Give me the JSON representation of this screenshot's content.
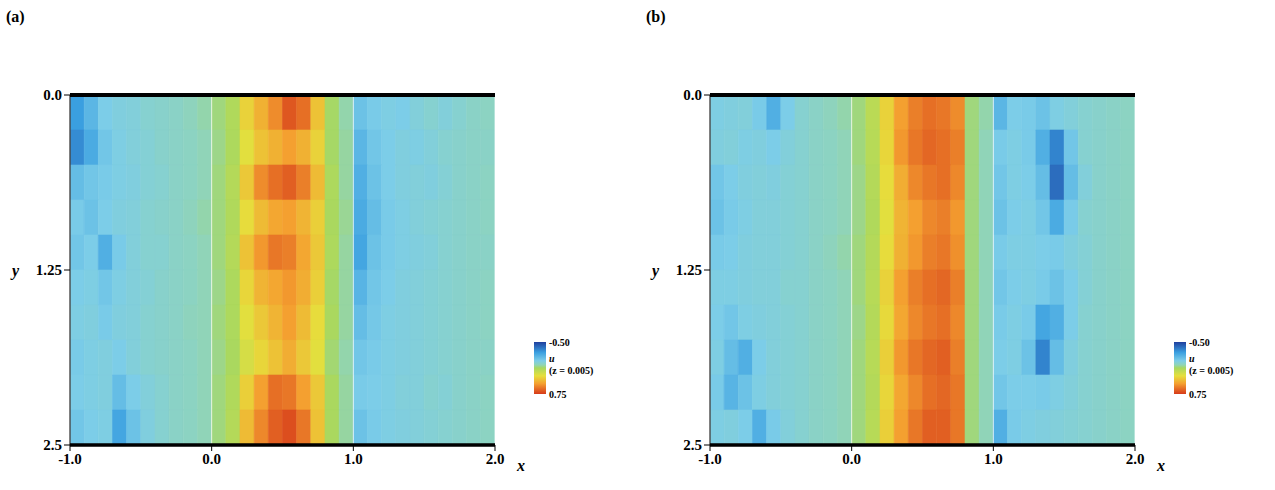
{
  "chart_data": [
    {
      "type": "heatmap",
      "title": "(a)",
      "x_label": "x",
      "y_label": "y",
      "xlim": [
        -1.0,
        2.0
      ],
      "xticks": [
        {
          "value": -1.0,
          "label": "-1.0"
        },
        {
          "value": 0,
          "label": "0.0"
        },
        {
          "value": 1.0,
          "label": "1.0"
        },
        {
          "value": 2.0,
          "label": "2.0"
        }
      ],
      "ylim": [
        0,
        2.5
      ],
      "yticks": [
        {
          "value": 0,
          "label": "0.0"
        },
        1.25,
        2.5
      ],
      "grid": true,
      "x_edges": [
        -1.0,
        -0.9,
        -0.8,
        -0.7,
        -0.6,
        -0.5,
        -0.4,
        -0.3,
        -0.2,
        -0.1,
        0.0,
        0.1,
        0.2,
        0.3,
        0.4,
        0.5,
        0.6,
        0.7,
        0.8,
        0.9,
        1.0,
        1.1,
        1.2,
        1.3,
        1.4,
        1.5,
        1.6,
        1.7,
        1.8,
        1.9,
        2.0
      ],
      "y_edges": [
        0.0,
        0.25,
        0.5,
        0.75,
        1.0,
        1.25,
        1.5,
        1.75,
        2.0,
        2.25,
        2.5
      ],
      "cells": [
        [
          -0.25,
          -0.15,
          -0.05,
          -0.03,
          -0.02,
          0.0,
          0.01,
          0.02,
          0.04,
          0.06,
          0.1,
          0.15,
          0.35,
          0.45,
          0.55,
          0.68,
          0.62,
          0.4,
          0.12,
          0.06,
          -0.1,
          -0.06,
          -0.04,
          -0.05,
          -0.02,
          0.0,
          -0.02,
          0.0,
          0.02,
          0.03
        ],
        [
          -0.3,
          -0.2,
          -0.08,
          -0.04,
          -0.02,
          -0.01,
          0.01,
          0.02,
          0.03,
          0.05,
          0.09,
          0.14,
          0.3,
          0.4,
          0.45,
          0.5,
          0.45,
          0.35,
          0.12,
          0.07,
          -0.15,
          -0.08,
          -0.05,
          -0.03,
          -0.04,
          -0.02,
          0.0,
          0.01,
          0.02,
          0.02
        ],
        [
          -0.12,
          -0.08,
          -0.06,
          -0.04,
          -0.03,
          -0.01,
          0.0,
          0.02,
          0.03,
          0.05,
          0.1,
          0.16,
          0.38,
          0.55,
          0.62,
          0.66,
          0.58,
          0.42,
          0.14,
          0.07,
          -0.18,
          -0.1,
          -0.05,
          -0.03,
          -0.02,
          -0.03,
          -0.01,
          0.01,
          0.02,
          0.03
        ],
        [
          -0.06,
          -0.1,
          -0.05,
          -0.03,
          -0.02,
          0.0,
          0.01,
          0.02,
          0.04,
          0.06,
          0.1,
          0.15,
          0.32,
          0.42,
          0.48,
          0.5,
          0.44,
          0.36,
          0.13,
          0.08,
          -0.2,
          -0.12,
          -0.06,
          -0.04,
          -0.02,
          -0.01,
          0.0,
          0.01,
          0.02,
          0.03
        ],
        [
          -0.08,
          -0.05,
          -0.18,
          -0.06,
          -0.02,
          0.0,
          0.0,
          0.02,
          0.03,
          0.05,
          0.1,
          0.16,
          0.4,
          0.52,
          0.6,
          0.58,
          0.48,
          0.38,
          0.14,
          0.07,
          -0.22,
          -0.1,
          -0.06,
          -0.04,
          -0.03,
          -0.02,
          0.0,
          0.01,
          0.02,
          0.02
        ],
        [
          -0.05,
          -0.04,
          -0.08,
          -0.04,
          -0.02,
          -0.01,
          0.01,
          0.02,
          0.03,
          0.05,
          0.09,
          0.14,
          0.34,
          0.44,
          0.48,
          0.52,
          0.46,
          0.36,
          0.12,
          0.07,
          -0.16,
          -0.08,
          -0.05,
          -0.03,
          -0.02,
          -0.01,
          0.0,
          0.01,
          0.02,
          0.03
        ],
        [
          -0.04,
          -0.03,
          -0.06,
          -0.03,
          -0.02,
          0.0,
          0.01,
          0.02,
          0.04,
          0.05,
          0.1,
          0.14,
          0.3,
          0.38,
          0.44,
          0.5,
          0.42,
          0.32,
          0.13,
          0.07,
          -0.12,
          -0.07,
          -0.04,
          -0.03,
          -0.02,
          -0.01,
          0.0,
          0.01,
          0.02,
          0.03
        ],
        [
          -0.06,
          -0.04,
          -0.03,
          -0.05,
          -0.02,
          0.0,
          0.01,
          0.02,
          0.03,
          0.05,
          0.09,
          0.13,
          0.26,
          0.34,
          0.4,
          0.46,
          0.38,
          0.3,
          0.11,
          0.06,
          -0.08,
          -0.06,
          -0.04,
          -0.03,
          -0.02,
          -0.01,
          0.0,
          0.01,
          0.02,
          0.02
        ],
        [
          -0.05,
          -0.04,
          -0.03,
          -0.12,
          -0.05,
          -0.02,
          0.0,
          0.02,
          0.03,
          0.05,
          0.1,
          0.15,
          0.36,
          0.5,
          0.62,
          0.6,
          0.5,
          0.38,
          0.13,
          0.07,
          -0.06,
          -0.05,
          -0.04,
          -0.02,
          -0.02,
          0.0,
          -0.01,
          0.01,
          0.02,
          0.03
        ],
        [
          -0.08,
          -0.05,
          -0.04,
          -0.22,
          -0.1,
          -0.03,
          0.0,
          0.02,
          0.03,
          0.05,
          0.1,
          0.16,
          0.42,
          0.56,
          0.66,
          0.7,
          0.6,
          0.4,
          0.13,
          0.07,
          -0.1,
          -0.06,
          -0.04,
          -0.03,
          -0.02,
          -0.01,
          0.0,
          0.01,
          0.02,
          0.03
        ]
      ],
      "colorbar": {
        "label": "u",
        "sublabel": "(z = 0.005)",
        "range": [
          -0.5,
          0.75
        ],
        "ticks": [
          {
            "value": -0.5,
            "label": "-0.50"
          },
          {
            "value": 0.75,
            "label": "0.75"
          }
        ]
      }
    },
    {
      "type": "heatmap",
      "title": "(b)",
      "x_label": "x",
      "y_label": "y",
      "xlim": [
        -1.0,
        2.0
      ],
      "xticks": [
        {
          "value": -1.0,
          "label": "-1.0"
        },
        {
          "value": 0,
          "label": "0.0"
        },
        {
          "value": 1.0,
          "label": "1.0"
        },
        {
          "value": 2.0,
          "label": "2.0"
        }
      ],
      "ylim": [
        0,
        2.5
      ],
      "yticks": [
        {
          "value": 0,
          "label": "0.0"
        },
        1.25,
        2.5
      ],
      "grid": true,
      "x_edges": [
        -1.0,
        -0.9,
        -0.8,
        -0.7,
        -0.6,
        -0.5,
        -0.4,
        -0.3,
        -0.2,
        -0.1,
        0.0,
        0.1,
        0.2,
        0.3,
        0.4,
        0.5,
        0.6,
        0.7,
        0.8,
        0.9,
        1.0,
        1.1,
        1.2,
        1.3,
        1.4,
        1.5,
        1.6,
        1.7,
        1.8,
        1.9,
        2.0
      ],
      "y_edges": [
        0.0,
        0.25,
        0.5,
        0.75,
        1.0,
        1.25,
        1.5,
        1.75,
        2.0,
        2.25,
        2.5
      ],
      "cells": [
        [
          -0.04,
          -0.03,
          -0.02,
          -0.06,
          -0.18,
          -0.05,
          0.0,
          0.02,
          0.04,
          0.06,
          0.1,
          0.18,
          0.35,
          0.5,
          0.58,
          0.62,
          0.6,
          0.55,
          0.1,
          0.06,
          -0.15,
          -0.05,
          -0.06,
          -0.1,
          -0.04,
          -0.02,
          0.0,
          0.01,
          0.02,
          0.03
        ],
        [
          -0.03,
          -0.02,
          -0.04,
          -0.03,
          -0.05,
          -0.02,
          0.0,
          0.02,
          0.03,
          0.05,
          0.1,
          0.17,
          0.34,
          0.52,
          0.6,
          0.64,
          0.62,
          0.58,
          0.1,
          0.05,
          -0.06,
          -0.04,
          -0.06,
          -0.18,
          -0.32,
          -0.08,
          0.0,
          0.01,
          0.02,
          0.03
        ],
        [
          -0.08,
          -0.05,
          -0.03,
          -0.02,
          -0.03,
          -0.01,
          0.0,
          0.02,
          0.03,
          0.05,
          0.09,
          0.16,
          0.32,
          0.46,
          0.56,
          0.6,
          0.62,
          0.56,
          0.1,
          0.05,
          -0.08,
          -0.04,
          -0.05,
          -0.12,
          -0.38,
          -0.12,
          -0.02,
          0.01,
          0.02,
          0.03
        ],
        [
          -0.1,
          -0.06,
          -0.04,
          -0.02,
          -0.02,
          -0.01,
          0.0,
          0.02,
          0.03,
          0.05,
          0.09,
          0.15,
          0.3,
          0.44,
          0.5,
          0.56,
          0.58,
          0.52,
          0.1,
          0.05,
          -0.1,
          -0.05,
          -0.04,
          -0.08,
          -0.2,
          -0.06,
          0.0,
          0.01,
          0.02,
          0.03
        ],
        [
          -0.06,
          -0.05,
          -0.03,
          -0.02,
          -0.02,
          -0.01,
          0.0,
          0.02,
          0.04,
          0.06,
          0.1,
          0.16,
          0.32,
          0.45,
          0.52,
          0.58,
          0.6,
          0.54,
          0.1,
          0.05,
          -0.06,
          -0.04,
          -0.04,
          -0.05,
          -0.06,
          -0.03,
          -0.01,
          0.01,
          0.02,
          0.03
        ],
        [
          -0.04,
          -0.04,
          -0.03,
          -0.02,
          -0.02,
          0.0,
          0.0,
          0.02,
          0.03,
          0.05,
          0.1,
          0.17,
          0.35,
          0.5,
          0.58,
          0.62,
          0.64,
          0.58,
          0.1,
          0.05,
          -0.08,
          -0.05,
          -0.04,
          -0.06,
          -0.1,
          -0.05,
          -0.01,
          0.01,
          0.02,
          0.03
        ],
        [
          -0.05,
          -0.08,
          -0.04,
          -0.03,
          -0.02,
          -0.01,
          0.0,
          0.02,
          0.03,
          0.05,
          0.09,
          0.16,
          0.33,
          0.48,
          0.56,
          0.6,
          0.62,
          0.56,
          0.1,
          0.05,
          -0.06,
          -0.04,
          -0.06,
          -0.22,
          -0.18,
          -0.05,
          0.0,
          0.01,
          0.02,
          0.03
        ],
        [
          -0.04,
          -0.12,
          -0.18,
          -0.05,
          -0.02,
          -0.01,
          0.0,
          0.02,
          0.03,
          0.05,
          0.1,
          0.17,
          0.36,
          0.52,
          0.6,
          0.64,
          0.66,
          0.58,
          0.1,
          0.05,
          -0.05,
          -0.04,
          -0.1,
          -0.32,
          -0.12,
          -0.03,
          0.0,
          0.01,
          0.02,
          0.03
        ],
        [
          -0.06,
          -0.16,
          -0.1,
          -0.04,
          -0.02,
          -0.01,
          0.0,
          0.02,
          0.03,
          0.05,
          0.1,
          0.16,
          0.34,
          0.48,
          0.56,
          0.62,
          0.64,
          0.6,
          0.1,
          0.05,
          -0.08,
          -0.05,
          -0.05,
          -0.06,
          -0.04,
          -0.02,
          0.0,
          0.01,
          0.02,
          0.03
        ],
        [
          -0.04,
          -0.03,
          -0.05,
          -0.18,
          -0.06,
          -0.02,
          0.0,
          0.02,
          0.03,
          0.05,
          0.1,
          0.17,
          0.36,
          0.5,
          0.6,
          0.66,
          0.66,
          0.6,
          0.1,
          0.05,
          -0.18,
          -0.06,
          -0.04,
          -0.03,
          -0.02,
          -0.01,
          0.0,
          0.01,
          0.02,
          0.03
        ]
      ],
      "colorbar": {
        "label": "u",
        "sublabel": "(z = 0.005)",
        "range": [
          -0.5,
          0.75
        ],
        "ticks": [
          {
            "value": -0.5,
            "label": "-0.50"
          },
          {
            "value": 0.75,
            "label": "0.75"
          }
        ]
      }
    }
  ]
}
